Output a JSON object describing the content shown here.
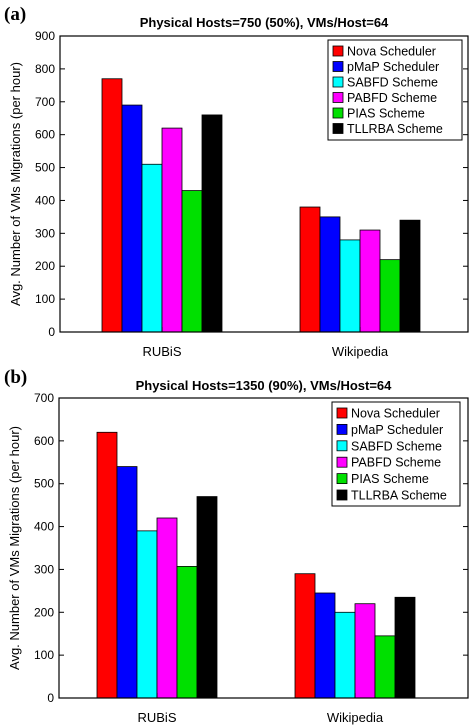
{
  "chart_data": [
    {
      "panel_label": "(a)",
      "type": "bar",
      "title": "Physical Hosts=750 (50%), VMs/Host=64",
      "ylabel": "Avg. Number of VMs Migrations (per hour)",
      "xlabel": "",
      "ylim": [
        0,
        900
      ],
      "yticks": [
        0,
        100,
        200,
        300,
        400,
        500,
        600,
        700,
        800,
        900
      ],
      "categories": [
        "RUBiS",
        "Wikipedia"
      ],
      "legend_position": "top-right",
      "grid": false,
      "series": [
        {
          "name": "Nova Scheduler",
          "color": "#ff0000",
          "values": [
            770,
            380
          ]
        },
        {
          "name": "pMaP Scheduler",
          "color": "#0000ff",
          "values": [
            690,
            350
          ]
        },
        {
          "name": "SABFD Scheme",
          "color": "#00ffff",
          "values": [
            510,
            280
          ]
        },
        {
          "name": "PABFD Scheme",
          "color": "#ff00ff",
          "values": [
            620,
            310
          ]
        },
        {
          "name": "PIAS Scheme",
          "color": "#00e000",
          "values": [
            430,
            220
          ]
        },
        {
          "name": "TLLRBA Scheme",
          "color": "#000000",
          "values": [
            660,
            340
          ]
        }
      ]
    },
    {
      "panel_label": "(b)",
      "type": "bar",
      "title": "Physical Hosts=1350 (90%), VMs/Host=64",
      "ylabel": "Avg. Number of VMs Migrations (per hour)",
      "xlabel": "",
      "ylim": [
        0,
        700
      ],
      "yticks": [
        0,
        100,
        200,
        300,
        400,
        500,
        600,
        700
      ],
      "categories": [
        "RUBiS",
        "Wikipedia"
      ],
      "legend_position": "top-right",
      "grid": false,
      "series": [
        {
          "name": "Nova Scheduler",
          "color": "#ff0000",
          "values": [
            620,
            290
          ]
        },
        {
          "name": "pMaP Scheduler",
          "color": "#0000ff",
          "values": [
            540,
            245
          ]
        },
        {
          "name": "SABFD Scheme",
          "color": "#00ffff",
          "values": [
            390,
            200
          ]
        },
        {
          "name": "PABFD Scheme",
          "color": "#ff00ff",
          "values": [
            420,
            220
          ]
        },
        {
          "name": "PIAS Scheme",
          "color": "#00e000",
          "values": [
            307,
            145
          ]
        },
        {
          "name": "TLLRBA Scheme",
          "color": "#000000",
          "values": [
            470,
            235
          ]
        }
      ]
    }
  ]
}
